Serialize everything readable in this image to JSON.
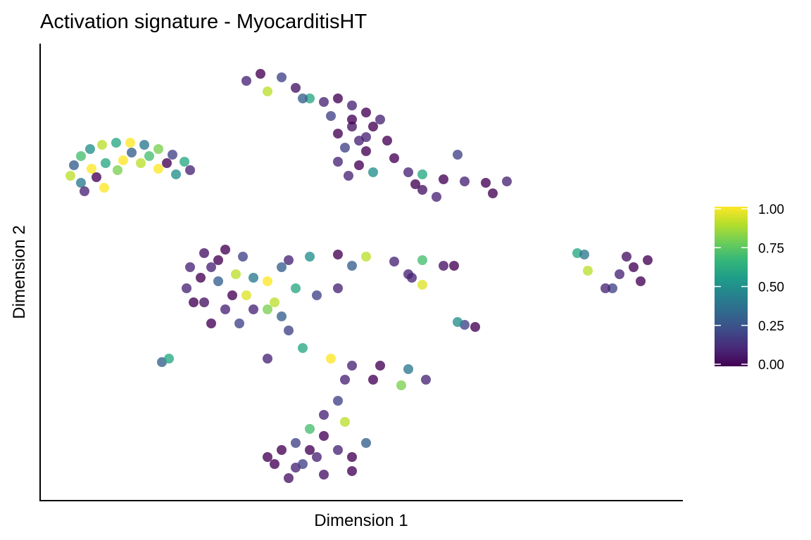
{
  "chart_data": {
    "type": "scatter",
    "title": "Activation signature - MyocarditisHT",
    "x_label": "Dimension 1",
    "y_label": "Dimension 2",
    "xlim": [
      0,
      913
    ],
    "ylim": [
      0,
      650
    ],
    "colormap": "viridis",
    "clim": [
      0,
      1
    ],
    "colorbar_ticks": [
      {
        "value": 0,
        "label": "0.00"
      },
      {
        "value": 0.25,
        "label": "0.25"
      },
      {
        "value": 0.5,
        "label": "0.50"
      },
      {
        "value": 0.75,
        "label": "0.75"
      },
      {
        "value": 1,
        "label": "1.00"
      }
    ],
    "x": [
      43,
      48,
      58,
      71,
      88,
      108,
      128,
      148,
      168,
      188,
      205,
      213,
      58,
      73,
      93,
      118,
      143,
      168,
      193,
      91,
      63,
      80,
      130,
      155,
      180,
      110,
      293,
      313,
      343,
      363,
      383,
      403,
      423,
      443,
      463,
      483,
      443,
      423,
      463,
      493,
      433,
      463,
      423,
      453,
      438,
      473,
      503,
      523,
      543,
      573,
      603,
      633,
      663,
      643,
      543,
      533,
      563,
      593,
      323,
      373,
      443,
      453,
      413,
      473,
      213,
      233,
      263,
      288,
      208,
      228,
      253,
      278,
      303,
      233,
      263,
      293,
      243,
      283,
      323,
      323,
      343,
      363,
      393,
      423,
      353,
      383,
      423,
      463,
      503,
      543,
      573,
      588,
      523,
      443,
      333,
      353,
      373,
      413,
      443,
      483,
      523,
      548,
      513,
      473,
      433,
      423,
      403,
      383,
      343,
      363,
      403,
      443,
      463,
      423,
      383,
      333,
      363,
      403,
      433,
      323,
      173,
      183,
      603,
      593,
      618,
      843,
      823,
      863,
      833,
      853,
      813,
      763,
      778,
      803,
      543,
      528,
      773,
      218,
      243,
      273,
      303,
      343,
      253,
      323,
      353,
      443,
      393,
      373
    ],
    "y": [
      462,
      477,
      490,
      500,
      506,
      509,
      509,
      506,
      500,
      492,
      482,
      470,
      452,
      472,
      480,
      484,
      480,
      472,
      464,
      445,
      440,
      460,
      495,
      490,
      480,
      470,
      597,
      607,
      602,
      587,
      572,
      567,
      572,
      562,
      552,
      542,
      532,
      522,
      517,
      512,
      502,
      497,
      482,
      477,
      462,
      467,
      487,
      467,
      464,
      457,
      454,
      452,
      454,
      437,
      442,
      450,
      432,
      492,
      582,
      572,
      542,
      512,
      547,
      532,
      332,
      352,
      357,
      347,
      302,
      317,
      312,
      322,
      317,
      282,
      272,
      292,
      252,
      252,
      272,
      312,
      332,
      302,
      292,
      302,
      342,
      347,
      350,
      347,
      340,
      342,
      334,
      334,
      322,
      334,
      282,
      242,
      217,
      202,
      192,
      192,
      187,
      172,
      164,
      172,
      172,
      142,
      122,
      102,
      72,
      47,
      37,
      62,
      82,
      72,
      72,
      52,
      82,
      92,
      112,
      202,
      197,
      202,
      250,
      254,
      247,
      332,
      322,
      342,
      347,
      312,
      302,
      352,
      327,
      302,
      307,
      317,
      350,
      282,
      332,
      292,
      272,
      262,
      342,
      62,
      32,
      42,
      62,
      52
    ],
    "values": [
      0.9,
      0.3,
      0.7,
      0.5,
      0.9,
      0.6,
      1,
      0.4,
      0.8,
      0.2,
      0.6,
      0.1,
      0.4,
      1,
      0.6,
      1,
      0.9,
      1,
      0.5,
      1,
      0.1,
      0,
      0.3,
      0.7,
      0,
      0.8,
      0.1,
      0.0,
      0.2,
      0.05,
      0.6,
      0.1,
      0.0,
      0.1,
      0.0,
      0.1,
      0.05,
      0.0,
      0.1,
      0.0,
      0.2,
      0.0,
      0.1,
      0.0,
      0.1,
      0.5,
      0.0,
      0.1,
      0.6,
      0.0,
      0.1,
      0.0,
      0.1,
      0.0,
      0.05,
      0.0,
      0.1,
      0.2,
      0.9,
      0.3,
      0.0,
      0.1,
      0.2,
      0.0,
      0.1,
      0.05,
      0.0,
      0.2,
      0.1,
      0.0,
      0.3,
      0.9,
      0.4,
      0.05,
      0.1,
      0.95,
      0.0,
      0.2,
      0.8,
      1.0,
      0.3,
      0.6,
      0.2,
      0.1,
      0.1,
      0.5,
      0.0,
      0.9,
      0.1,
      0.7,
      0.05,
      0.0,
      0.1,
      0.3,
      0.9,
      0.2,
      0.6,
      1.0,
      0.1,
      0.0,
      0.4,
      0.1,
      0.8,
      0.0,
      0.1,
      0.2,
      0.1,
      0.7,
      0.0,
      0.1,
      0.05,
      0.0,
      0.3,
      0.1,
      0.0,
      0.0,
      0.2,
      0.0,
      0.9,
      0.1,
      0.3,
      0.6,
      0.2,
      0.5,
      0.0,
      0.0,
      0.1,
      0.0,
      0.05,
      0.0,
      0.2,
      0.6,
      0.9,
      0.1,
      0.95,
      0.1,
      0.4,
      0.0,
      0.1,
      0.0,
      0.1,
      0.3,
      0.0,
      0.0,
      0.05,
      0.0,
      0.1,
      0.2
    ]
  }
}
